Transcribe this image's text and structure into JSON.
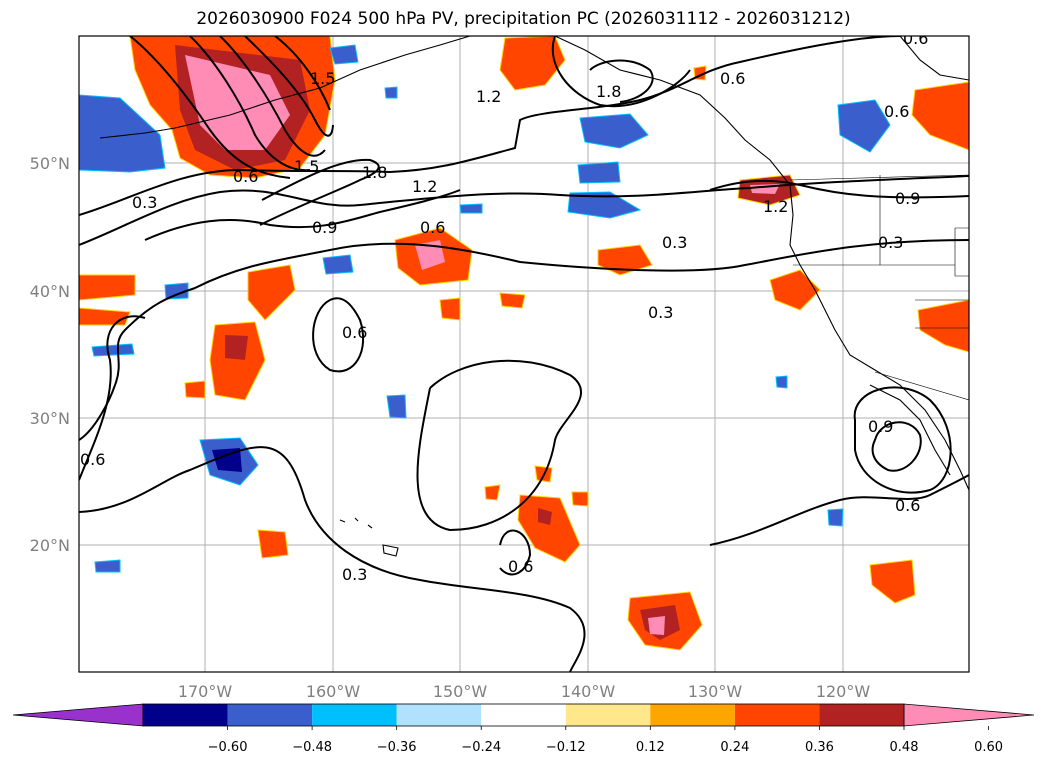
{
  "title": "2026030900 F024 500 hPa PV, precipitation PC (2026031112 - 2026031212)",
  "map": {
    "lon_labels": [
      "170°W",
      "160°W",
      "150°W",
      "140°W",
      "130°W",
      "120°W"
    ],
    "lat_labels": [
      "50°N",
      "40°N",
      "30°N",
      "20°N"
    ],
    "contour_labels": [
      "0.3",
      "0.6",
      "0.9",
      "1.2",
      "1.5",
      "1.8"
    ],
    "grid": true
  },
  "colorbar": {
    "ticks": [
      "−0.60",
      "−0.48",
      "−0.36",
      "−0.24",
      "−0.12",
      "0.12",
      "0.24",
      "0.36",
      "0.48",
      "0.60"
    ],
    "colors": [
      "#9932cc",
      "#00008b",
      "#3a5fcd",
      "#00bfff",
      "#b0e2ff",
      "#ffffff",
      "#ffe88c",
      "#ffa500",
      "#ff4500",
      "#b22222",
      "#ff8cb4"
    ]
  }
}
